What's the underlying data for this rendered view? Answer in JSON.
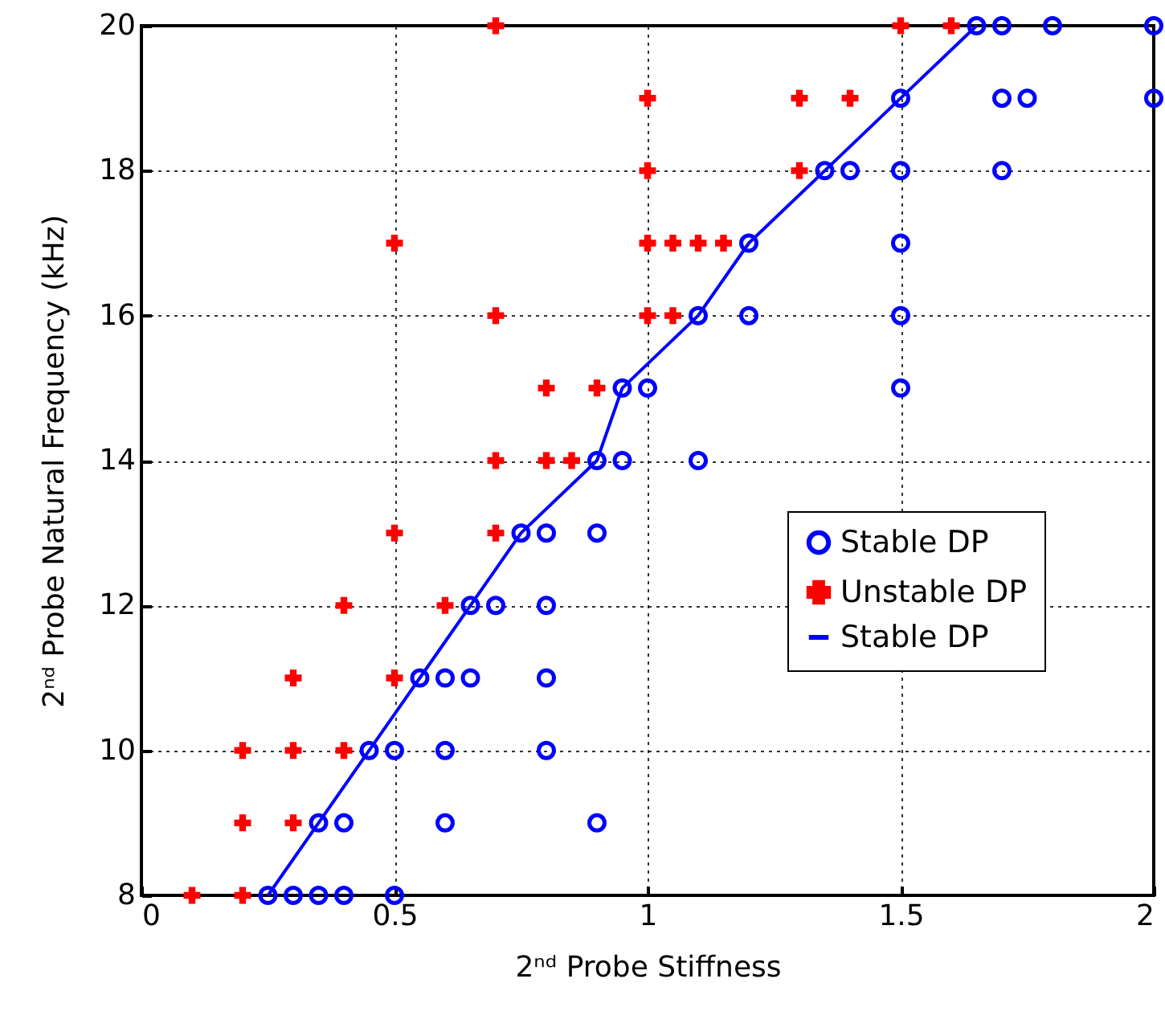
{
  "chart_data": {
    "type": "scatter",
    "xlabel": "2ⁿᵈ Probe Stiffness",
    "ylabel": "2ⁿᵈ Probe Natural Frequency (kHz)",
    "xlim": [
      0,
      2
    ],
    "xticks": [
      0,
      0.5,
      1,
      1.5,
      2
    ],
    "ylim": [
      8,
      20
    ],
    "yticks": [
      8,
      10,
      12,
      14,
      16,
      18,
      20
    ],
    "grid": true,
    "legend": "right",
    "series": [
      {
        "name": "Stable DP",
        "marker": "circle",
        "color": "#0000ff",
        "x": [
          0.25,
          0.3,
          0.35,
          0.4,
          0.5,
          0.35,
          0.4,
          0.6,
          0.9,
          0.45,
          0.5,
          0.6,
          0.8,
          0.55,
          0.6,
          0.65,
          0.8,
          0.65,
          0.7,
          0.8,
          0.75,
          0.8,
          0.9,
          0.9,
          0.95,
          1.1,
          0.95,
          1.0,
          1.5,
          1.1,
          1.2,
          1.5,
          1.2,
          1.5,
          1.35,
          1.4,
          1.5,
          1.7,
          1.5,
          1.7,
          1.75,
          2.0,
          1.65,
          1.7,
          1.8,
          2.0
        ],
        "values": [
          8,
          8,
          8,
          8,
          8,
          9,
          9,
          9,
          9,
          10,
          10,
          10,
          10,
          11,
          11,
          11,
          11,
          12,
          12,
          12,
          13,
          13,
          13,
          14,
          14,
          14,
          15,
          15,
          15,
          16,
          16,
          16,
          17,
          17,
          18,
          18,
          18,
          18,
          19,
          19,
          19,
          19,
          20,
          20,
          20,
          20
        ]
      },
      {
        "name": "Unstable DP",
        "marker": "cross",
        "color": "#ff0000",
        "x": [
          0.1,
          0.2,
          0.2,
          0.3,
          0.2,
          0.3,
          0.4,
          0.3,
          0.5,
          0.4,
          0.6,
          0.5,
          0.7,
          0.7,
          0.8,
          0.85,
          0.8,
          0.9,
          0.7,
          1.0,
          1.05,
          0.5,
          1.0,
          1.05,
          1.1,
          1.15,
          1.0,
          1.3,
          1.0,
          1.3,
          1.4,
          0.7,
          1.5,
          1.6
        ],
        "values": [
          8,
          8,
          9,
          9,
          10,
          10,
          10,
          11,
          11,
          12,
          12,
          13,
          13,
          14,
          14,
          14,
          15,
          15,
          16,
          16,
          16,
          17,
          17,
          17,
          17,
          17,
          18,
          18,
          19,
          19,
          19,
          20,
          20,
          20
        ]
      },
      {
        "name": "Stable DP",
        "type": "line",
        "marker": "none",
        "line_style": "solid",
        "color": "#0000ff",
        "x": [
          0.25,
          0.35,
          0.45,
          0.55,
          0.65,
          0.75,
          0.9,
          0.95,
          1.1,
          1.2,
          1.35,
          1.5,
          1.65
        ],
        "values": [
          8,
          9,
          10,
          11,
          12,
          13,
          14,
          15,
          16,
          17,
          18,
          19,
          20
        ]
      }
    ]
  }
}
